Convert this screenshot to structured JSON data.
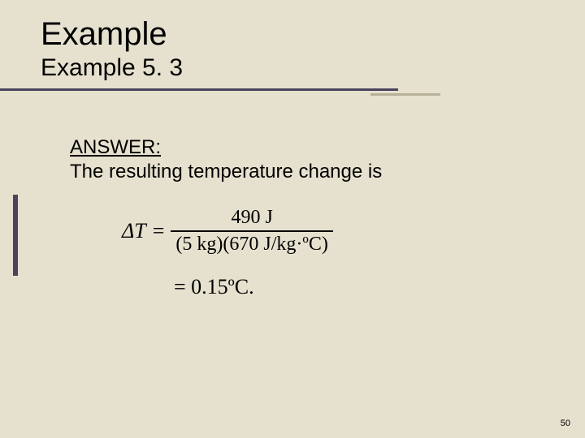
{
  "slide": {
    "main_title": "Example",
    "sub_title": "Example 5. 3",
    "answer_label": "ANSWER:",
    "answer_text": "The resulting temperature change is",
    "equation": {
      "lhs": "ΔT",
      "eq": "=",
      "numerator": "490 J",
      "denom_mass": "5 kg",
      "denom_c": "670 J/kg·ºC",
      "result_line": "= 0.15ºC."
    },
    "page_number": "50"
  },
  "style": {
    "background_color": "#e5e1ce",
    "rule_color": "#4a445c",
    "accent_rule_color": "#b8b19a",
    "title_fontsize": 40,
    "subtitle_fontsize": 30,
    "body_fontsize": 24,
    "equation_fontsize": 26,
    "page_number_fontsize": 11
  }
}
